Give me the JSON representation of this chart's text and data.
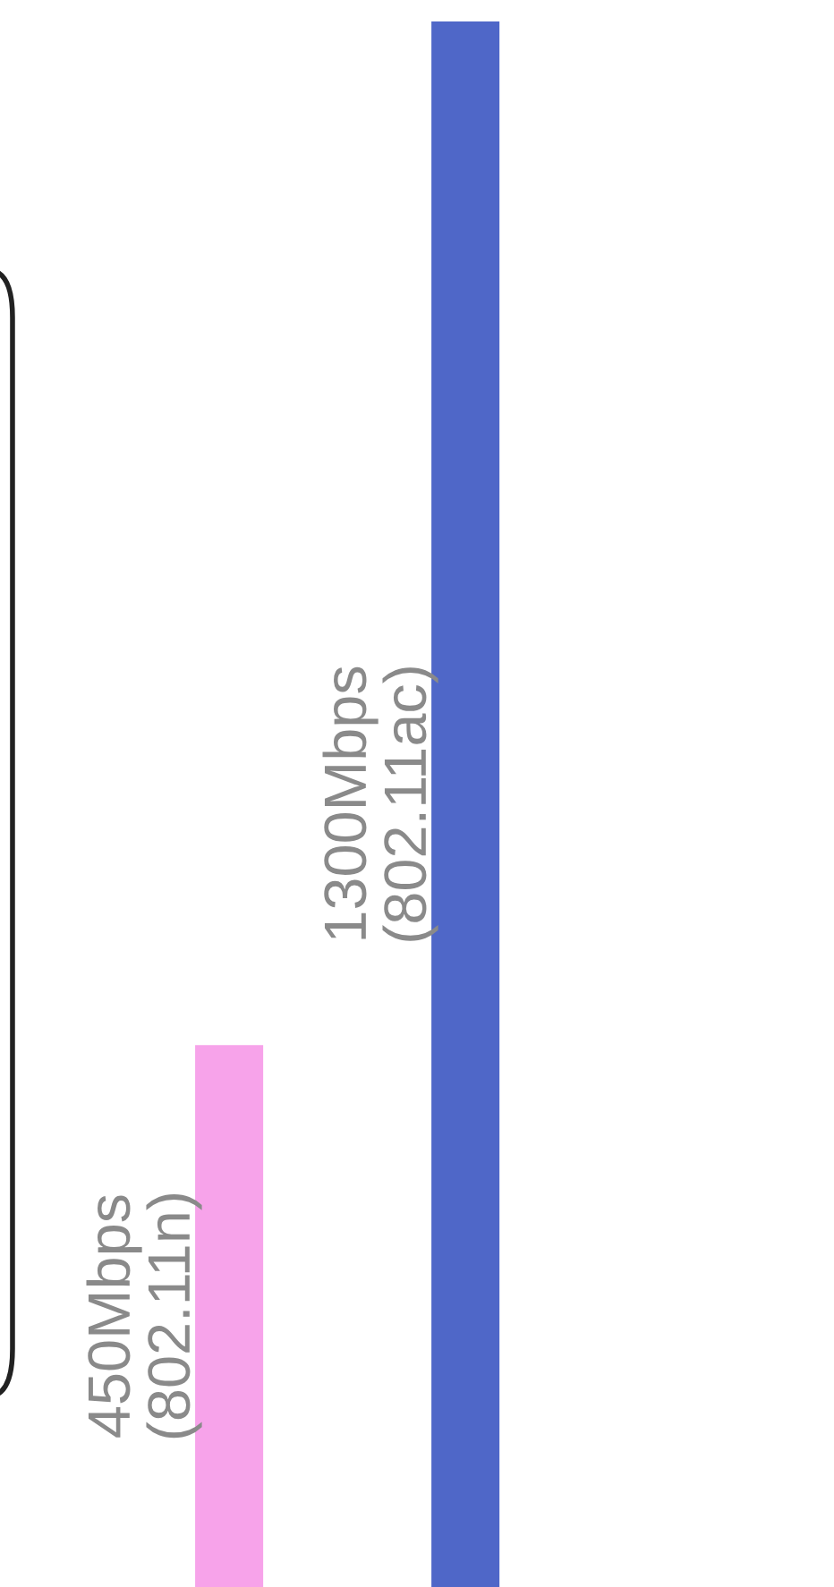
{
  "chart_data": {
    "type": "bar",
    "categories": [
      null,
      null
    ],
    "values": [
      450,
      1300
    ],
    "colors": [
      "#f7a3ea",
      "#4f67c8"
    ],
    "value_labels": [
      "450Mbps\n(802.11n)",
      "1300Mbps\n(802.11ac)"
    ]
  }
}
